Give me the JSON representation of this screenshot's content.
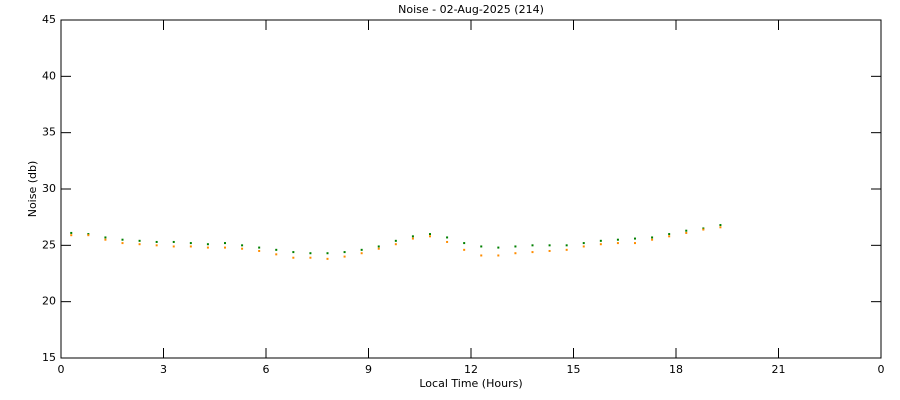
{
  "chart_data": {
    "type": "scatter",
    "title": "Noise - 02-Aug-2025 (214)",
    "x_label": "Local Time (Hours)",
    "y_label": "Noise (db)",
    "xlim": [
      0,
      24
    ],
    "xticks": [
      0,
      3,
      6,
      9,
      12,
      15,
      18,
      21,
      {
        "value": 24,
        "label": "0"
      }
    ],
    "ylim": [
      15,
      45
    ],
    "yticks": [
      15,
      20,
      25,
      30,
      35,
      40,
      45
    ],
    "grid": false,
    "x": [
      0.3,
      0.8,
      1.3,
      1.8,
      2.3,
      2.8,
      3.3,
      3.8,
      4.3,
      4.8,
      5.3,
      5.8,
      6.3,
      6.8,
      7.3,
      7.8,
      8.3,
      8.8,
      9.3,
      9.8,
      10.3,
      10.8,
      11.3,
      11.8,
      12.3,
      12.8,
      13.3,
      13.8,
      14.3,
      14.8,
      15.3,
      15.8,
      16.3,
      16.8,
      17.3,
      17.8,
      18.3,
      18.8,
      19.3
    ],
    "series": [
      {
        "color": "#008000",
        "values": [
          26.1,
          26.0,
          25.7,
          25.5,
          25.4,
          25.3,
          25.3,
          25.2,
          25.1,
          25.2,
          25.0,
          24.8,
          24.6,
          24.4,
          24.3,
          24.3,
          24.4,
          24.6,
          24.9,
          25.4,
          25.8,
          26.0,
          25.7,
          25.2,
          24.9,
          24.8,
          24.9,
          25.0,
          25.0,
          25.0,
          25.2,
          25.4,
          25.5,
          25.6,
          25.7,
          26.0,
          26.3,
          26.5,
          26.8
        ]
      },
      {
        "color": "#ff8c00",
        "values": [
          25.9,
          25.9,
          25.5,
          25.2,
          25.1,
          25.0,
          24.9,
          24.9,
          24.8,
          24.8,
          24.7,
          24.5,
          24.2,
          23.9,
          23.9,
          23.8,
          24.0,
          24.3,
          24.7,
          25.1,
          25.6,
          25.8,
          25.3,
          24.6,
          24.1,
          24.1,
          24.3,
          24.4,
          24.5,
          24.6,
          24.9,
          25.1,
          25.2,
          25.2,
          25.5,
          25.8,
          26.1,
          26.4,
          26.6
        ]
      }
    ]
  }
}
